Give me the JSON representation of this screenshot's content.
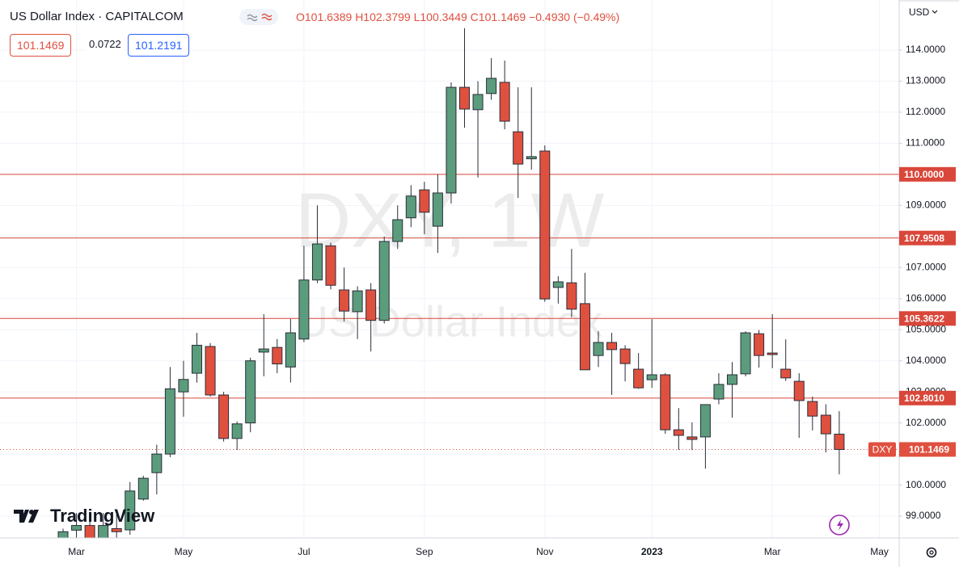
{
  "chart_data": {
    "type": "candlestick",
    "title": "US Dollar Index · CAPITALCOM",
    "currency": "USD",
    "watermark": [
      "DXY, 1W",
      "US Dollar Index"
    ],
    "legend_text": [
      "O101.6389",
      "H102.3799",
      "L100.3449",
      "C101.1469",
      "−0.4930 (−0.49%)"
    ],
    "price_boxes": [
      "101.1469",
      "0.0722",
      "101.2191"
    ],
    "brand": "TradingView",
    "categories": [
      null,
      "Mar",
      null,
      null,
      null,
      null,
      null,
      null,
      null,
      "May",
      null,
      null,
      null,
      null,
      null,
      null,
      null,
      null,
      "Jul",
      null,
      null,
      null,
      null,
      null,
      null,
      null,
      null,
      "Sep",
      null,
      null,
      null,
      null,
      null,
      null,
      null,
      null,
      "Nov",
      null,
      null,
      null,
      null,
      null,
      null,
      null,
      "2023",
      null,
      null,
      null,
      null,
      null,
      null,
      null,
      null,
      "Mar",
      null,
      null,
      null,
      null,
      null,
      null,
      null,
      "May"
    ],
    "open": [
      98.2,
      98.55,
      98.7,
      98.3,
      98.6,
      98.56,
      99.55,
      100.4,
      101.0,
      103.0,
      103.6,
      104.46,
      102.9,
      101.5,
      102.0,
      104.28,
      104.43,
      103.8,
      104.7,
      106.6,
      107.7,
      106.28,
      105.58,
      106.28,
      105.3,
      107.84,
      108.6,
      109.5,
      108.33,
      109.4,
      112.8,
      112.08,
      112.6,
      112.96,
      111.37,
      110.5,
      110.75,
      106.36,
      106.51,
      105.84,
      104.17,
      104.59,
      104.38,
      103.73,
      103.39,
      103.55,
      101.78,
      101.55,
      101.55,
      102.77,
      103.24,
      103.58,
      104.87,
      104.25,
      103.73,
      103.34,
      102.69,
      102.25,
      101.6389,
      null,
      null,
      null
    ],
    "high": [
      98.6,
      99.1,
      99.0,
      99.1,
      99.2,
      100.1,
      100.3,
      101.3,
      103.8,
      104.0,
      104.9,
      104.57,
      103.0,
      102.05,
      104.1,
      105.5,
      104.7,
      105.35,
      107.7,
      109.0,
      107.8,
      107.0,
      106.4,
      106.5,
      108.0,
      109.0,
      109.65,
      109.76,
      110.0,
      112.96,
      114.7,
      113.0,
      113.74,
      113.66,
      112.8,
      112.8,
      110.93,
      106.72,
      107.6,
      106.83,
      104.95,
      104.9,
      104.5,
      104.25,
      105.34,
      103.6,
      102.48,
      102.02,
      102.6,
      103.6,
      103.96,
      104.95,
      104.99,
      105.5,
      104.69,
      103.6,
      102.85,
      102.6,
      102.3799,
      null,
      null,
      null
    ],
    "low": [
      98.0,
      98.3,
      98.0,
      98.1,
      98.3,
      98.4,
      99.5,
      99.7,
      100.9,
      102.2,
      103.3,
      102.85,
      101.4,
      101.13,
      101.7,
      103.5,
      103.6,
      103.3,
      104.6,
      106.5,
      106.3,
      105.27,
      104.7,
      104.3,
      105.2,
      107.6,
      108.3,
      108.07,
      107.47,
      109.06,
      111.5,
      109.9,
      112.4,
      111.45,
      109.24,
      110.15,
      105.9,
      105.84,
      105.4,
      103.71,
      103.8,
      102.9,
      103.34,
      103.1,
      103.13,
      101.65,
      101.13,
      101.13,
      100.53,
      102.6,
      102.17,
      103.5,
      103.78,
      103.76,
      103.35,
      101.52,
      101.76,
      101.05,
      100.3449,
      null,
      null,
      null
    ],
    "close": [
      98.5,
      98.7,
      98.3,
      98.7,
      98.5,
      99.81,
      100.22,
      101.0,
      103.1,
      103.4,
      104.5,
      102.9,
      101.5,
      101.97,
      104.0,
      104.38,
      103.9,
      104.9,
      106.6,
      107.76,
      106.43,
      105.6,
      106.25,
      105.3,
      107.84,
      108.54,
      109.3,
      108.78,
      109.4,
      112.8,
      112.1,
      112.57,
      113.09,
      111.71,
      110.33,
      110.57,
      105.99,
      106.54,
      105.66,
      103.71,
      104.59,
      104.36,
      103.91,
      103.13,
      103.55,
      101.78,
      101.6,
      101.47,
      102.59,
      103.24,
      103.55,
      104.9,
      104.17,
      104.2,
      103.45,
      102.72,
      102.22,
      101.65,
      101.1469,
      null,
      null,
      null
    ],
    "up_color": "#5b9c7c",
    "down_color": "#e0503f",
    "hlines": [
      {
        "value": 110.0,
        "label": "110.0000"
      },
      {
        "value": 107.9508,
        "label": "107.9508"
      },
      {
        "value": 105.3622,
        "label": "105.3622"
      },
      {
        "value": 102.801,
        "label": "102.8010"
      }
    ],
    "hline_color": "#d9473a",
    "last_price": {
      "name": "DXY",
      "value": 101.1469,
      "label": "101.1469"
    },
    "ylim": [
      98.3,
      115.61
    ],
    "yticks": [
      {
        "value": 99,
        "label": "99.0000"
      },
      {
        "value": 100,
        "label": "100.0000"
      },
      {
        "value": 101,
        "label": "101.0000"
      },
      {
        "value": 102,
        "label": "102.0000"
      },
      {
        "value": 103,
        "label": "103.0000"
      },
      {
        "value": 104,
        "label": "104.0000"
      },
      {
        "value": 105,
        "label": "105.0000"
      },
      {
        "value": 106,
        "label": "106.0000"
      },
      {
        "value": 107,
        "label": "107.0000"
      },
      {
        "value": 108,
        "label": "108.0000"
      },
      {
        "value": 109,
        "label": "109.0000"
      },
      {
        "value": 110,
        "label": "110.0000"
      },
      {
        "value": 111,
        "label": "111.0000"
      },
      {
        "value": 112,
        "label": "112.0000"
      },
      {
        "value": 113,
        "label": "113.0000"
      },
      {
        "value": 114,
        "label": "114.0000"
      }
    ],
    "grid": true
  }
}
